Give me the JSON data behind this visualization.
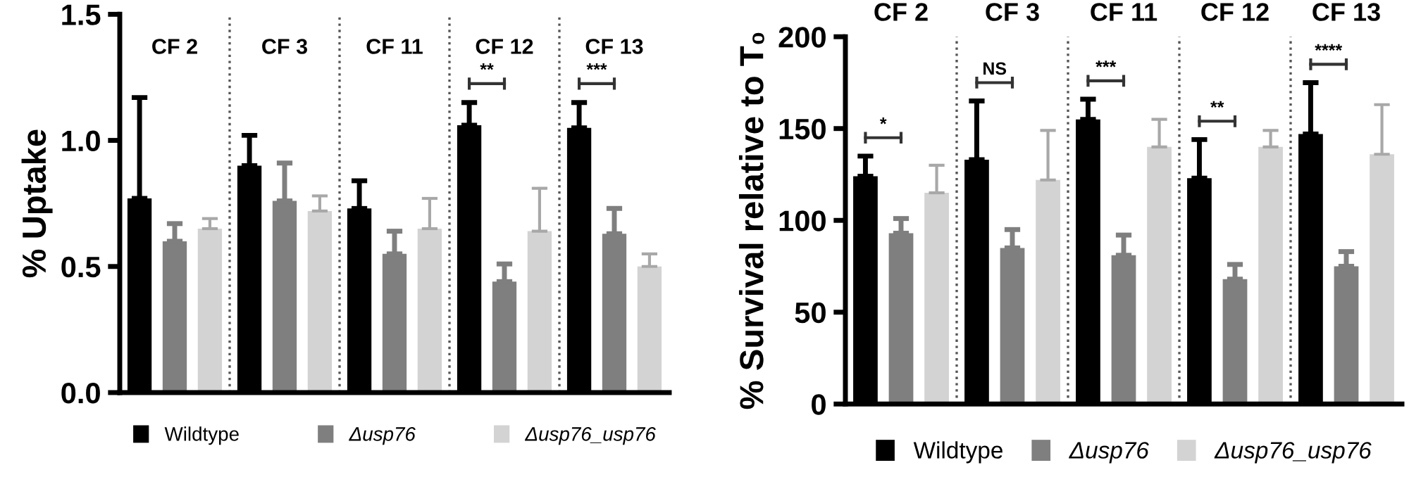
{
  "chart_data": [
    {
      "type": "bar",
      "ylabel": "% Uptake",
      "categories": [
        "CF 2",
        "CF 3",
        "CF 11",
        "CF 12",
        "CF 13"
      ],
      "series": [
        {
          "name": "Wildtype",
          "color": "#000000",
          "values": [
            0.77,
            0.9,
            0.73,
            1.06,
            1.05
          ],
          "errors": [
            [
              0.77,
              1.17
            ],
            [
              0.9,
              1.02
            ],
            [
              0.73,
              0.84
            ],
            [
              1.06,
              1.15
            ],
            [
              1.05,
              1.15
            ]
          ]
        },
        {
          "name": "Δusp76",
          "color": "#7f7f7f",
          "values": [
            0.6,
            0.76,
            0.55,
            0.44,
            0.63
          ],
          "errors": [
            [
              0.6,
              0.67
            ],
            [
              0.76,
              0.91
            ],
            [
              0.55,
              0.64
            ],
            [
              0.44,
              0.51
            ],
            [
              0.63,
              0.73
            ]
          ]
        },
        {
          "name": "Δusp76_usp76",
          "color": "#d3d3d3",
          "values": [
            0.65,
            0.72,
            0.65,
            0.64,
            0.5
          ],
          "errors": [
            [
              0.65,
              0.69
            ],
            [
              0.72,
              0.78
            ],
            [
              0.65,
              0.77
            ],
            [
              0.64,
              0.81
            ],
            [
              0.5,
              0.55
            ]
          ]
        }
      ],
      "ylim": [
        0,
        1.5
      ],
      "yticks": [
        {
          "value": 0,
          "label": "0.0"
        },
        0.5,
        {
          "value": 1.0,
          "label": "1.0"
        },
        1.5
      ],
      "annotations": [
        "**",
        "***"
      ],
      "legend": "bottom",
      "grid": false
    },
    {
      "type": "bar",
      "ylabel": "% Survival relative to T₀",
      "categories": [
        "CF 2",
        "CF 3",
        "CF 11",
        "CF 12",
        "CF 13"
      ],
      "series": [
        {
          "name": "Wildtype",
          "color": "#000000",
          "values": [
            124,
            133,
            155,
            123,
            147
          ],
          "errors": [
            [
              124,
              135
            ],
            [
              133,
              165
            ],
            [
              155,
              166
            ],
            [
              123,
              144
            ],
            [
              147,
              175
            ]
          ]
        },
        {
          "name": "Δusp76",
          "color": "#7f7f7f",
          "values": [
            93,
            85,
            81,
            68,
            75
          ],
          "errors": [
            [
              93,
              101
            ],
            [
              85,
              95
            ],
            [
              81,
              92
            ],
            [
              68,
              76
            ],
            [
              75,
              83
            ]
          ]
        },
        {
          "name": "Δusp76_usp76",
          "color": "#d3d3d3",
          "values": [
            115,
            122,
            140,
            140,
            136
          ],
          "errors": [
            [
              115,
              130
            ],
            [
              122,
              149
            ],
            [
              140,
              155
            ],
            [
              140,
              149
            ],
            [
              136,
              163
            ]
          ]
        }
      ],
      "ylim": [
        0,
        200
      ],
      "yticks": [
        0,
        50,
        100,
        150,
        200
      ],
      "annotations": [
        "*",
        "NS",
        "***",
        "**",
        "****"
      ],
      "legend": "bottom",
      "grid": false
    }
  ]
}
